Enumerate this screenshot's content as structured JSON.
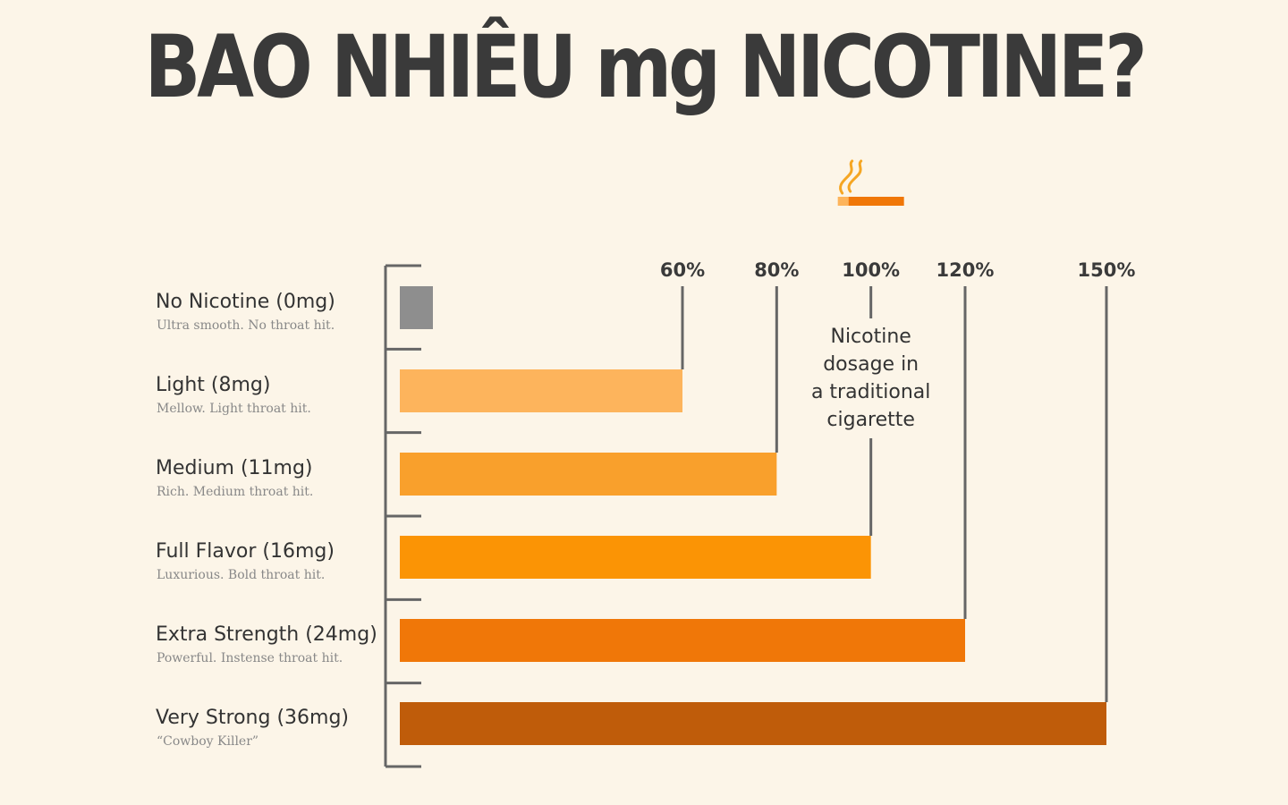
{
  "page": {
    "title": "BAO NHIÊU mg NICOTINE?"
  },
  "chart_data": {
    "type": "bar",
    "orientation": "horizontal",
    "title": "BAO NHIÊU mg NICOTINE?",
    "xlabel": "",
    "ylabel": "",
    "xlim": [
      0,
      150
    ],
    "unit": "%",
    "categories": [
      "No Nicotine (0mg)",
      "Light (8mg)",
      "Medium (11mg)",
      "Full Flavor (16mg)",
      "Extra Strength (24mg)",
      "Very Strong (36mg)"
    ],
    "descriptions": [
      "Ultra smooth. No throat hit.",
      "Mellow. Light throat hit.",
      "Rich. Medium throat hit.",
      "Luxurious. Bold throat hit.",
      "Powerful. Instense throat hit.",
      "“Cowboy Killer”"
    ],
    "values": [
      0,
      60,
      80,
      100,
      120,
      150
    ],
    "colors": [
      "#8e8e8e",
      "#fdb45c",
      "#f9a02c",
      "#fb9405",
      "#f07708",
      "#bf5c0a"
    ],
    "ticks": [
      {
        "value": 60,
        "label": "60%"
      },
      {
        "value": 80,
        "label": "80%"
      },
      {
        "value": 100,
        "label": "100%"
      },
      {
        "value": 120,
        "label": "120%"
      },
      {
        "value": 150,
        "label": "150%"
      }
    ],
    "annotation": {
      "value": 100,
      "lines": [
        "Nicotine",
        "dosage in",
        "a traditional",
        "cigarette"
      ],
      "icon": "cigarette-icon"
    },
    "grid": false,
    "legend": "none"
  }
}
